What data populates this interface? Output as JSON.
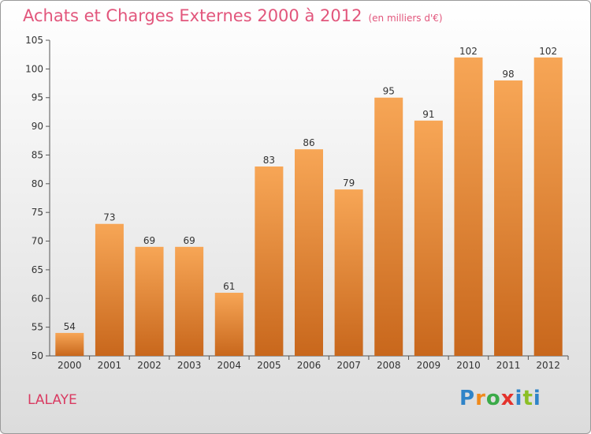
{
  "header": {
    "title": "Achats et Charges Externes 2000 à 2012",
    "subtitle": "(en milliers d'€)"
  },
  "footer": {
    "commune": "LALAYE",
    "logo": "Proxiti"
  },
  "colors": {
    "bar_top": "#f7a656",
    "bar_bottom": "#c8671c",
    "title": "#e2567c"
  },
  "chart_data": {
    "type": "bar",
    "title": "Achats et Charges Externes 2000 à 2012",
    "subtitle": "(en milliers d'€)",
    "categories": [
      "2000",
      "2001",
      "2002",
      "2003",
      "2004",
      "2005",
      "2006",
      "2007",
      "2008",
      "2009",
      "2010",
      "2011",
      "2012"
    ],
    "values": [
      54,
      73,
      69,
      69,
      61,
      83,
      86,
      79,
      95,
      91,
      102,
      98,
      102
    ],
    "ylim": [
      50,
      105
    ],
    "yticks": [
      50,
      55,
      60,
      65,
      70,
      75,
      80,
      85,
      90,
      95,
      100,
      105
    ],
    "grid": false,
    "legend": "none"
  }
}
